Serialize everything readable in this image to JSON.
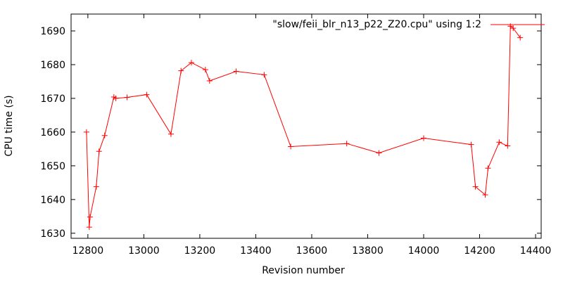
{
  "chart_data": {
    "type": "line",
    "title": "",
    "xlabel": "Revision number",
    "ylabel": "CPU time (s)",
    "xlim": [
      12740,
      14420
    ],
    "ylim": [
      1628.5,
      1695
    ],
    "xticks": [
      12800,
      13000,
      13200,
      13400,
      13600,
      13800,
      14000,
      14200,
      14400
    ],
    "yticks": [
      1630,
      1640,
      1650,
      1660,
      1670,
      1680,
      1690
    ],
    "grid": false,
    "legend": "top-right",
    "series": [
      {
        "name": "\"slow/feii_blr_n13_p22_Z20.cpu\" using 1:2",
        "color": "#ff0000",
        "marker": "plus",
        "x": [
          12795,
          12805,
          12808,
          12830,
          12840,
          12860,
          12893,
          12900,
          12940,
          13010,
          13097,
          13133,
          13170,
          13220,
          13235,
          13330,
          13430,
          13525,
          13725,
          13840,
          14000,
          14170,
          14185,
          14220,
          14230,
          14270,
          14300,
          14310,
          14320,
          14345
        ],
        "y": [
          1660,
          1631.8,
          1634.8,
          1643.8,
          1654.3,
          1659,
          1670.4,
          1670,
          1670.3,
          1671.1,
          1659.4,
          1678.2,
          1680.6,
          1678.5,
          1675.2,
          1678,
          1677,
          1655.7,
          1656.6,
          1653.8,
          1658.2,
          1656.3,
          1643.8,
          1641.4,
          1649.3,
          1657,
          1655.9,
          1691.4,
          1690.8,
          1688
        ]
      }
    ]
  }
}
